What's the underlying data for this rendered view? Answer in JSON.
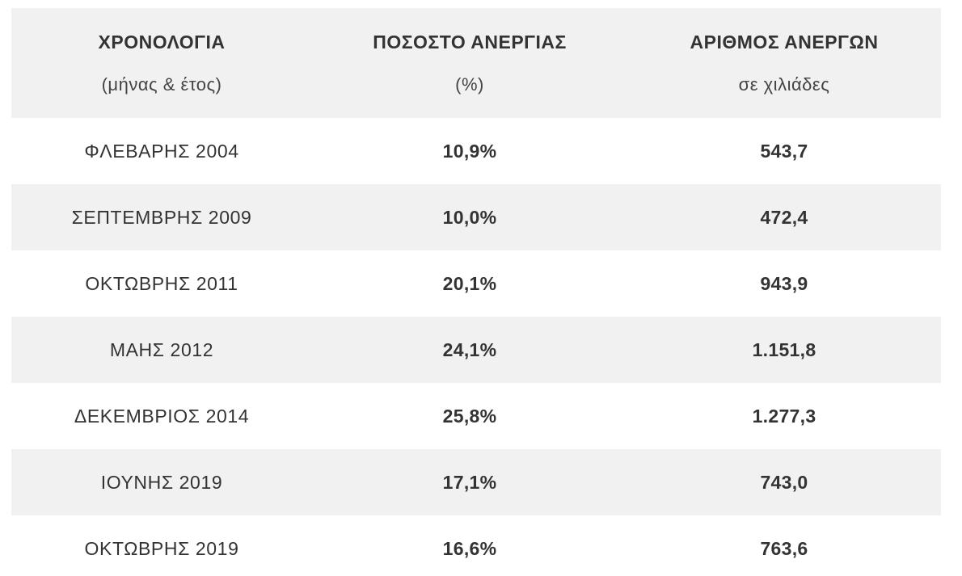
{
  "table": {
    "headers": [
      {
        "title": "ΧΡΟΝΟΛΟΓΙΑ",
        "subtitle": "(μήνας & έτος)"
      },
      {
        "title": "ΠΟΣΟΣΤΟ ΑΝΕΡΓΙΑΣ",
        "subtitle": "(%)"
      },
      {
        "title": "ΑΡΙΘΜΟΣ ΑΝΕΡΓΩΝ",
        "subtitle": "σε χιλιάδες"
      }
    ],
    "rows": [
      {
        "date": "ΦΛΕΒΑΡΗΣ 2004",
        "rate": "10,9%",
        "count": "543,7"
      },
      {
        "date": "ΣΕΠΤΕΜΒΡΗΣ 2009",
        "rate": "10,0%",
        "count": "472,4"
      },
      {
        "date": "ΟΚΤΩΒΡΗΣ 2011",
        "rate": "20,1%",
        "count": "943,9"
      },
      {
        "date": "ΜΑΗΣ 2012",
        "rate": "24,1%",
        "count": "1.151,8"
      },
      {
        "date": "ΔΕΚΕΜΒΡΙΟΣ 2014",
        "rate": "25,8%",
        "count": "1.277,3"
      },
      {
        "date": "ΙΟΥΝΗΣ 2019",
        "rate": "17,1%",
        "count": "743,0"
      },
      {
        "date": "ΟΚΤΩΒΡΗΣ 2019",
        "rate": "16,6%",
        "count": "763,6"
      }
    ]
  },
  "colors": {
    "shade": "#f1f1f1",
    "text": "#333333",
    "background": "#ffffff"
  }
}
